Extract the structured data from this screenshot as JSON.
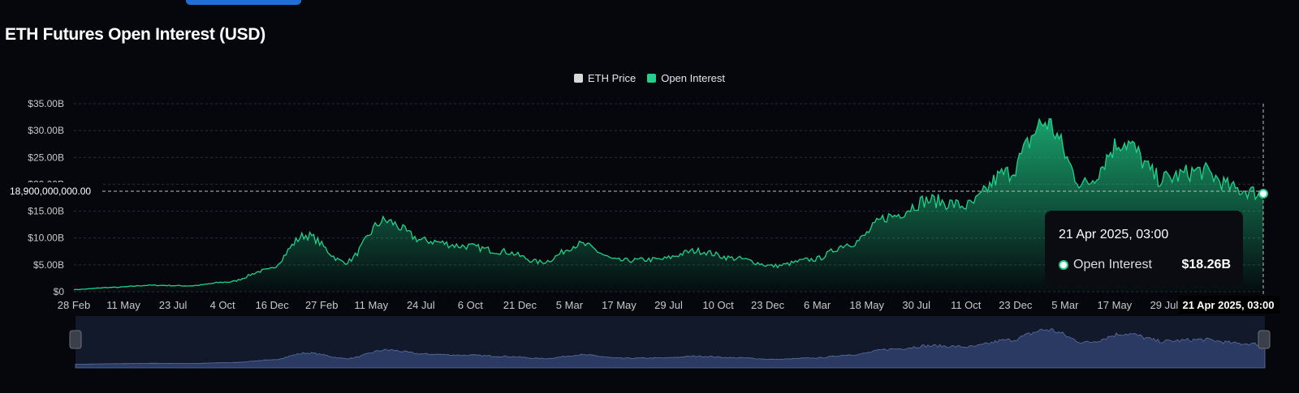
{
  "title": "ETH Futures Open Interest (USD)",
  "legend": [
    {
      "label": "ETH Price",
      "color": "#d9d9d9"
    },
    {
      "label": "Open Interest",
      "color": "#1fd28b"
    }
  ],
  "colors": {
    "open_interest": "#1fd28b",
    "navigator": "#2b3a63",
    "background": "#05070c"
  },
  "crosshair_label": "18,900,000,000.00",
  "tooltip": {
    "date": "21 Apr 2025, 03:00",
    "series": "Open Interest",
    "value": "$18.26B"
  },
  "x_cursor_label": "21 Apr 2025, 03:00",
  "chart_data": {
    "type": "area",
    "title": "ETH Futures Open Interest (USD)",
    "xlabel": "",
    "ylabel": "",
    "ylim": [
      0,
      35
    ],
    "y_unit": "billion USD",
    "y_ticks": [
      "$0",
      "$5.00B",
      "$10.00B",
      "$15.00B",
      "$20.00B",
      "$25.00B",
      "$30.00B",
      "$35.00B"
    ],
    "x_tick_labels": [
      "28 Feb",
      "11 May",
      "23 Jul",
      "4 Oct",
      "16 Dec",
      "27 Feb",
      "11 May",
      "24 Jul",
      "6 Oct",
      "21 Dec",
      "5 Mar",
      "17 May",
      "29 Jul",
      "10 Oct",
      "23 Dec",
      "6 Mar",
      "18 May",
      "30 Jul",
      "11 Oct",
      "23 Dec",
      "5 Mar",
      "17 May",
      "29 Jul",
      "10 Oct",
      "21 Apr 2025, 03:00"
    ],
    "grid": true,
    "legend_position": "top-center",
    "series": [
      {
        "name": "Open Interest",
        "x": [
          "2019-02-28",
          "2019-05-11",
          "2019-07-23",
          "2019-10-04",
          "2019-12-16",
          "2020-02-27",
          "2020-05-11",
          "2020-07-24",
          "2020-10-06",
          "2020-12-21",
          "2021-03-05",
          "2021-05-17",
          "2021-07-29",
          "2021-10-10",
          "2021-12-23",
          "2022-03-06",
          "2022-05-18",
          "2022-07-30",
          "2022-10-11",
          "2022-12-23",
          "2023-03-05",
          "2023-05-17",
          "2023-07-29",
          "2023-10-10",
          "2023-12-23",
          "2024-03-06",
          "2024-05-18",
          "2024-07-30",
          "2024-10-11",
          "2024-12-23",
          "2025-03-05",
          "2025-04-21"
        ],
        "values": [
          0.4,
          0.8,
          1.2,
          1.1,
          1.8,
          4.0,
          10.5,
          5.5,
          13.2,
          9.5,
          8.5,
          7.5,
          5.5,
          8.8,
          5.8,
          6.0,
          7.6,
          6.2,
          4.8,
          6.0,
          9.0,
          14.0,
          17.0,
          16.0,
          22.0,
          31.5,
          20.0,
          28.0,
          21.0,
          22.5,
          19.0,
          18.26
        ]
      }
    ]
  }
}
